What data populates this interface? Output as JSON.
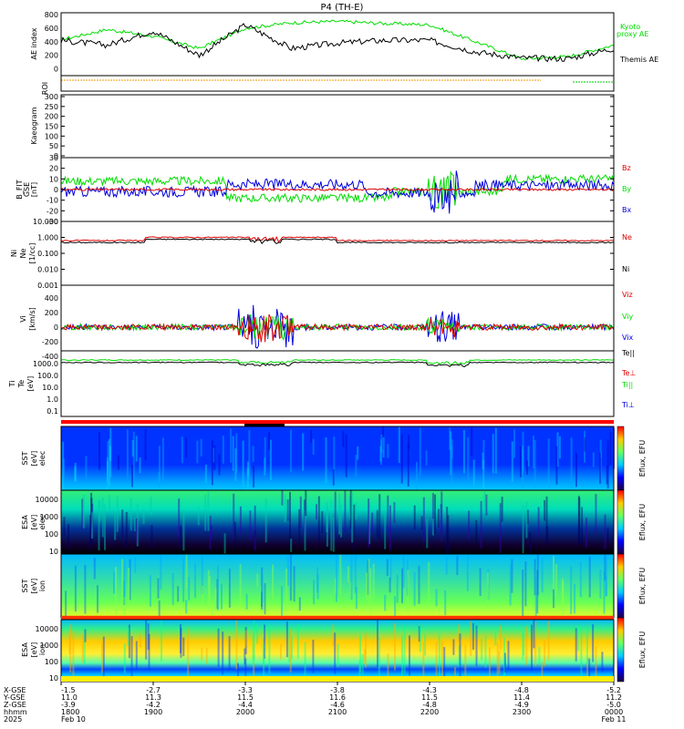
{
  "title": "P4 (TH-E)",
  "colors": {
    "ae_themis": "#000000",
    "ae_kyoto": "#00dd00",
    "bz": "#dd0000",
    "by": "#00dd00",
    "bx": "#0000dd",
    "ne": "#dd0000",
    "ni": "#000000",
    "vz": "#dd0000",
    "vy": "#00dd00",
    "vx": "#0000dd",
    "roi": "#ee9900",
    "roi_right": "#00cc00"
  },
  "panels": {
    "ae": {
      "ylabel": "AE index",
      "yticks": [
        "800",
        "600",
        "400",
        "200",
        "0"
      ],
      "legend_kyoto_1": "Kyoto",
      "legend_kyoto_2": "proxy AE",
      "legend_themis": "Themis AE"
    },
    "roi": {
      "ylabel": "ROI"
    },
    "kp": {
      "ylabel": "Kaeogram",
      "yticks": [
        "300",
        "250",
        "200",
        "150",
        "100",
        "50",
        "0"
      ]
    },
    "bfield": {
      "ylabel_1": "B_FIT",
      "ylabel_2": "GSE",
      "ylabel_3": "[nT]",
      "yticks": [
        "30",
        "20",
        "10",
        "0",
        "-10",
        "-20",
        "-30"
      ],
      "legend": [
        "Bz",
        "By",
        "Bx"
      ]
    },
    "density": {
      "ylabel_1": "Ni",
      "ylabel_2": "Ne",
      "ylabel_3": "[1/cc]",
      "yticks": [
        "10.000",
        "1.000",
        "0.100",
        "0.010",
        "0.001"
      ],
      "legend": [
        "Ne",
        "Ni"
      ]
    },
    "velocity": {
      "ylabel_1": "Vi",
      "ylabel_2": "[km/s]",
      "yticks": [
        "400",
        "200",
        "0",
        "-200",
        "-400"
      ],
      "legend": [
        "Viz",
        "Viy",
        "Vix"
      ]
    },
    "temperature": {
      "ylabel_1": "Ti",
      "ylabel_2": "Te",
      "ylabel_3": "[eV]",
      "yticks": [
        "1000.0",
        "100.0",
        "10.0",
        "1.0",
        "0.1"
      ],
      "legend": [
        "Te||",
        "Te⊥",
        "Ti||",
        "Ti⊥"
      ]
    },
    "sst_e": {
      "ylabel_1": "SST",
      "ylabel_2": "[eV]",
      "ylabel_3": "elec"
    },
    "esa_e": {
      "ylabel_1": "ESA",
      "ylabel_2": "[eV]",
      "ylabel_3": "elec",
      "yticks": [
        "10000",
        "1000",
        "100",
        "10"
      ]
    },
    "sst_i": {
      "ylabel_1": "SST",
      "ylabel_2": "[eV]",
      "ylabel_3": "ion"
    },
    "esa_i": {
      "ylabel_1": "ESA",
      "ylabel_2": "[eV]",
      "ylabel_3": "ion",
      "yticks": [
        "10000",
        "1000",
        "100",
        "10"
      ]
    }
  },
  "colorbar": {
    "label": "Eflux, EFU"
  },
  "time_axis": {
    "row_labels": [
      "X-GSE",
      "Y-GSE",
      "Z-GSE",
      "hhmm",
      "2025"
    ],
    "columns": [
      {
        "x": "-1.5",
        "y": "11.0",
        "z": "-3.9",
        "t": "1800",
        "d": "Feb 10"
      },
      {
        "x": "-2.7",
        "y": "11.3",
        "z": "-4.2",
        "t": "1900",
        "d": ""
      },
      {
        "x": "-3.3",
        "y": "11.5",
        "z": "-4.4",
        "t": "2000",
        "d": ""
      },
      {
        "x": "-3.8",
        "y": "11.6",
        "z": "-4.6",
        "t": "2100",
        "d": ""
      },
      {
        "x": "-4.3",
        "y": "11.5",
        "z": "-4.8",
        "t": "2200",
        "d": ""
      },
      {
        "x": "-4.8",
        "y": "11.4",
        "z": "-4.9",
        "t": "2300",
        "d": ""
      },
      {
        "x": "-5.2",
        "y": "11.2",
        "z": "-5.0",
        "t": "0000",
        "d": "Feb 11"
      }
    ]
  },
  "chart_data": {
    "type": "line",
    "title": "P4 (TH-E)",
    "x": [
      "1800",
      "1830",
      "1900",
      "1930",
      "2000",
      "2030",
      "2100",
      "2130",
      "2200",
      "2230",
      "2300",
      "2330",
      "0000"
    ],
    "series": [
      {
        "name": "Kyoto proxy AE",
        "values": [
          430,
          580,
          480,
          300,
          600,
          680,
          700,
          670,
          650,
          400,
          150,
          180,
          350
        ]
      },
      {
        "name": "Themis AE",
        "values": [
          420,
          350,
          560,
          200,
          650,
          300,
          380,
          420,
          420,
          250,
          160,
          150,
          300
        ]
      }
    ],
    "ylabel": "AE index",
    "ylim": [
      -100,
      800
    ]
  }
}
